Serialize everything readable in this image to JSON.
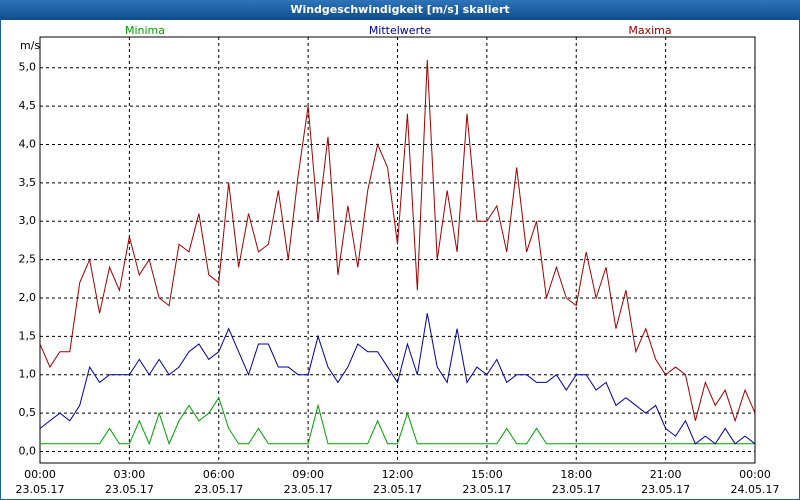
{
  "chart_data": {
    "type": "line",
    "title": "Windgeschwindigkeit [m/s] skaliert",
    "y_label": "m/s",
    "x": [
      0,
      20,
      40,
      60,
      80,
      100,
      120,
      140,
      160,
      180,
      200,
      220,
      240,
      260,
      280,
      300,
      320,
      340,
      360,
      380,
      400,
      420,
      440,
      460,
      480,
      500,
      520,
      540,
      560,
      580,
      600,
      620,
      640,
      660,
      680,
      700,
      720,
      740,
      760,
      780,
      800,
      820,
      840,
      860,
      880,
      900,
      920,
      940,
      960,
      980,
      1000,
      1020,
      1040,
      1060,
      1080,
      1100,
      1120,
      1140,
      1160,
      1180,
      1200,
      1220,
      1240,
      1260,
      1280,
      1300,
      1320,
      1340,
      1360,
      1380,
      1400,
      1420,
      1440
    ],
    "series": [
      {
        "name": "Minima",
        "color": "#00a000",
        "values": [
          0.1,
          0.1,
          0.1,
          0.1,
          0.1,
          0.1,
          0.1,
          0.3,
          0.1,
          0.1,
          0.4,
          0.1,
          0.5,
          0.1,
          0.4,
          0.6,
          0.4,
          0.5,
          0.7,
          0.3,
          0.1,
          0.1,
          0.3,
          0.1,
          0.1,
          0.1,
          0.1,
          0.1,
          0.6,
          0.1,
          0.1,
          0.1,
          0.1,
          0.1,
          0.4,
          0.1,
          0.1,
          0.5,
          0.1,
          0.1,
          0.1,
          0.1,
          0.1,
          0.1,
          0.1,
          0.1,
          0.1,
          0.3,
          0.1,
          0.1,
          0.3,
          0.1,
          0.1,
          0.1,
          0.1,
          0.1,
          0.1,
          0.1,
          0.1,
          0.1,
          0.1,
          0.1,
          0.1,
          0.1,
          0.1,
          0.1,
          0.1,
          0.1,
          0.1,
          0.1,
          0.1,
          0.1,
          0.1
        ]
      },
      {
        "name": "Mittelwerte",
        "color": "#0000a0",
        "values": [
          0.3,
          0.4,
          0.5,
          0.4,
          0.6,
          1.1,
          0.9,
          1.0,
          1.0,
          1.0,
          1.2,
          1.0,
          1.2,
          1.0,
          1.1,
          1.3,
          1.4,
          1.2,
          1.3,
          1.6,
          1.3,
          1.0,
          1.4,
          1.4,
          1.1,
          1.1,
          1.0,
          1.0,
          1.5,
          1.1,
          0.9,
          1.1,
          1.4,
          1.3,
          1.3,
          1.1,
          0.9,
          1.4,
          1.0,
          1.8,
          1.1,
          0.9,
          1.6,
          0.9,
          1.1,
          1.0,
          1.2,
          0.9,
          1.0,
          1.0,
          0.9,
          0.9,
          1.0,
          0.8,
          1.0,
          1.0,
          0.8,
          0.9,
          0.6,
          0.7,
          0.6,
          0.5,
          0.6,
          0.3,
          0.2,
          0.4,
          0.1,
          0.2,
          0.1,
          0.3,
          0.1,
          0.2,
          0.1
        ]
      },
      {
        "name": "Maxima",
        "color": "#a00000",
        "values": [
          1.4,
          1.1,
          1.3,
          1.3,
          2.2,
          2.5,
          1.8,
          2.4,
          2.1,
          2.8,
          2.3,
          2.5,
          2.0,
          1.9,
          2.7,
          2.6,
          3.1,
          2.3,
          2.2,
          3.5,
          2.4,
          3.1,
          2.6,
          2.7,
          3.4,
          2.5,
          3.6,
          4.5,
          3.0,
          4.1,
          2.3,
          3.2,
          2.4,
          3.4,
          4.0,
          3.7,
          2.7,
          4.4,
          2.1,
          5.1,
          2.5,
          3.4,
          2.6,
          4.4,
          3.0,
          3.0,
          3.2,
          2.6,
          3.7,
          2.6,
          3.0,
          2.0,
          2.4,
          2.0,
          1.9,
          2.6,
          2.0,
          2.4,
          1.6,
          2.1,
          1.3,
          1.6,
          1.2,
          1.0,
          1.1,
          1.0,
          0.4,
          0.9,
          0.6,
          0.8,
          0.4,
          0.8,
          0.5
        ]
      }
    ],
    "xlim": [
      0,
      1440
    ],
    "xticks": [
      {
        "value": 0,
        "label": "00:00"
      },
      {
        "value": 180,
        "label": "03:00"
      },
      {
        "value": 360,
        "label": "06:00"
      },
      {
        "value": 540,
        "label": "09:00"
      },
      {
        "value": 720,
        "label": "12:00"
      },
      {
        "value": 900,
        "label": "15:00"
      },
      {
        "value": 1080,
        "label": "18:00"
      },
      {
        "value": 1260,
        "label": "21:00"
      },
      {
        "value": 1440,
        "label": "00:00"
      }
    ],
    "xtick_dates": [
      "23.05.17",
      "23.05.17",
      "23.05.17",
      "23.05.17",
      "23.05.17",
      "23.05.17",
      "23.05.17",
      "23.05.17",
      "24.05.17"
    ],
    "ylim": [
      -0.15,
      5.4
    ],
    "yticks": [
      {
        "value": 0,
        "label": "0,0"
      },
      {
        "value": 0.5,
        "label": "0,5"
      },
      {
        "value": 1,
        "label": "1,0"
      },
      {
        "value": 1.5,
        "label": "1,5"
      },
      {
        "value": 2,
        "label": "2,0"
      },
      {
        "value": 2.5,
        "label": "2,5"
      },
      {
        "value": 3,
        "label": "3,0"
      },
      {
        "value": 3.5,
        "label": "3,5"
      },
      {
        "value": 4,
        "label": "4,0"
      },
      {
        "value": 4.5,
        "label": "4,5"
      },
      {
        "value": 5,
        "label": "5,0"
      }
    ],
    "grid": true
  }
}
